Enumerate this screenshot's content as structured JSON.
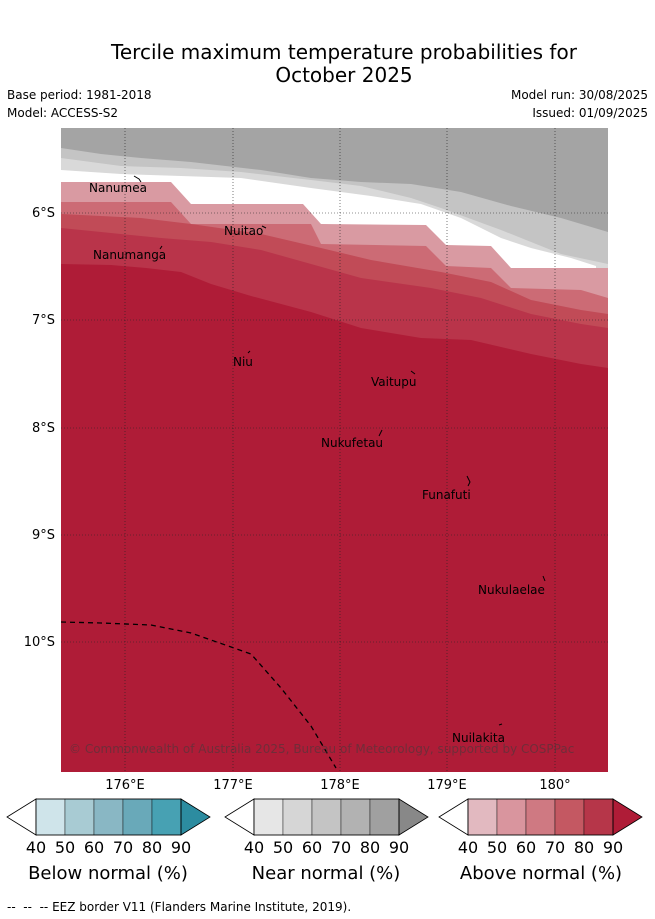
{
  "title_line1": "Tercile maximum temperature probabilities for",
  "title_line2": "October 2025",
  "base_period": "Base period: 1981-2018",
  "model": "Model: ACCESS-S2",
  "model_run": "Model run: 30/08/2025",
  "issued": "Issued: 01/09/2025",
  "lat_labels": [
    "6°S",
    "7°S",
    "8°S",
    "9°S",
    "10°S"
  ],
  "lon_labels": [
    "176°E",
    "177°E",
    "178°E",
    "179°E",
    "180°"
  ],
  "islands": [
    "Nanumea",
    "Nuitao",
    "Nanumanga",
    "Niu",
    "Vaitupu",
    "Nukufetau",
    "Funafuti",
    "Nukulaelae",
    "Nuilakita"
  ],
  "copyright": "© Commonwealth of Australia 2025, Bureau of Meteorology, supported by COSPPac",
  "colorbars": [
    {
      "title": "Below normal (%)",
      "ticks": [
        "40",
        "50",
        "60",
        "70",
        "80",
        "90"
      ],
      "colors": [
        "#ffffff",
        "#cfe4ea",
        "#a8cbd3",
        "#89b7c4",
        "#69a9b9",
        "#47a1b3",
        "#2c8ca0"
      ]
    },
    {
      "title": "Near normal (%)",
      "ticks": [
        "40",
        "50",
        "60",
        "70",
        "80",
        "90"
      ],
      "colors": [
        "#ffffff",
        "#e6e6e6",
        "#d6d6d6",
        "#c4c4c4",
        "#b2b2b2",
        "#a0a0a0",
        "#888888"
      ]
    },
    {
      "title": "Above normal (%)",
      "ticks": [
        "40",
        "50",
        "60",
        "70",
        "80",
        "90"
      ],
      "colors": [
        "#ffffff",
        "#e2b9c0",
        "#d9959e",
        "#cf7982",
        "#c45862",
        "#b63649",
        "#af1c37"
      ]
    }
  ],
  "footer": "EEZ border V11 (Flanders Marine Institute, 2019)."
}
